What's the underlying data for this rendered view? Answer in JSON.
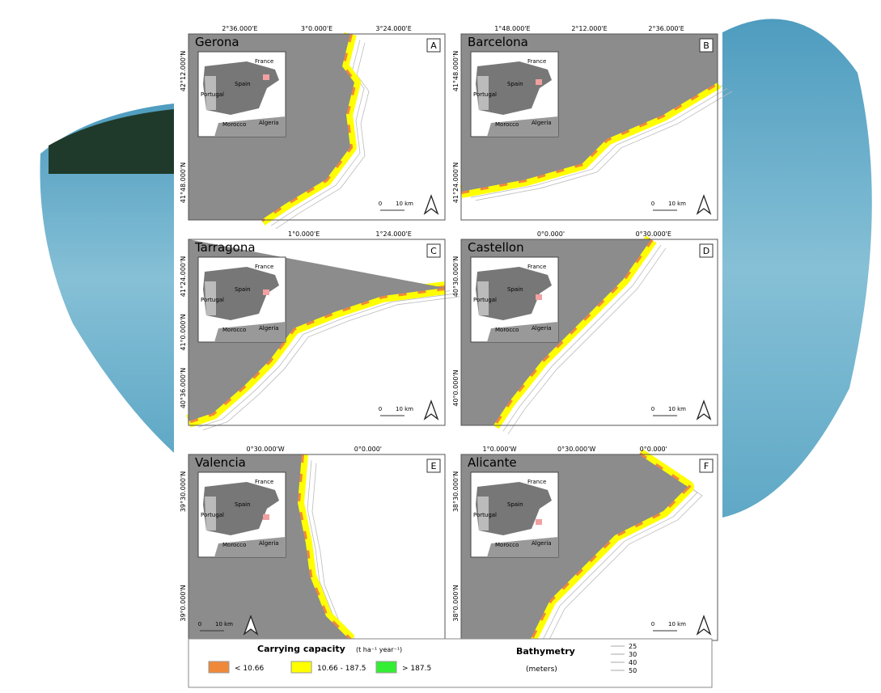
{
  "panels": [
    {
      "name": "Gerona",
      "letter": "A",
      "lon_ticks": [
        "2°36.000'E",
        "3°0.000'E",
        "3°24.000'E"
      ],
      "lat_ticks": [
        "42°12.000'N",
        "41°48.000'N"
      ]
    },
    {
      "name": "Barcelona",
      "letter": "B",
      "lon_ticks": [
        "1°48.000'E",
        "2°12.000'E",
        "2°36.000'E"
      ],
      "lat_ticks": [
        "41°48.000'N",
        "41°24.000'N"
      ]
    },
    {
      "name": "Tarragona",
      "letter": "C",
      "lon_ticks": [
        "1°0.000'E",
        "1°24.000'E"
      ],
      "lat_ticks": [
        "41°24.000'N",
        "41°0.000'N",
        "40°36.000'N"
      ]
    },
    {
      "name": "Castellon",
      "letter": "D",
      "lon_ticks": [
        "0°0.000'",
        "0°30.000'E"
      ],
      "lat_ticks": [
        "40°30.000'N",
        "40°0.000'N"
      ]
    },
    {
      "name": "Valencia",
      "letter": "E",
      "lon_ticks": [
        "0°30.000'W",
        "0°0.000'"
      ],
      "lat_ticks": [
        "39°30.000'N",
        "39°0.000'N"
      ]
    },
    {
      "name": "Alicante",
      "letter": "F",
      "lon_ticks": [
        "1°0.000'W",
        "0°30.000'W",
        "0°0.000'"
      ],
      "lat_ticks": [
        "38°30.000'N",
        "38°0.000'N"
      ]
    }
  ],
  "inset_labels": {
    "france": "France",
    "spain": "Spain",
    "portugal": "Portugal",
    "morocco": "Morocco",
    "algeria": "Algeria"
  },
  "scale": {
    "zero": "0",
    "distance": "10 km"
  },
  "legend": {
    "title": "Carrying capacity",
    "units": "(t ha⁻¹ year⁻¹)",
    "classes": [
      {
        "label": "< 10.66",
        "color": "#f0883a"
      },
      {
        "label": "10.66 - 187.5",
        "color": "#ffff00"
      },
      {
        "label": "> 187.5",
        "color": "#33ee33"
      }
    ],
    "bathymetry_title": "Bathymetry",
    "bathymetry_units": "(meters)",
    "depths": [
      "25",
      "30",
      "40",
      "50"
    ]
  }
}
